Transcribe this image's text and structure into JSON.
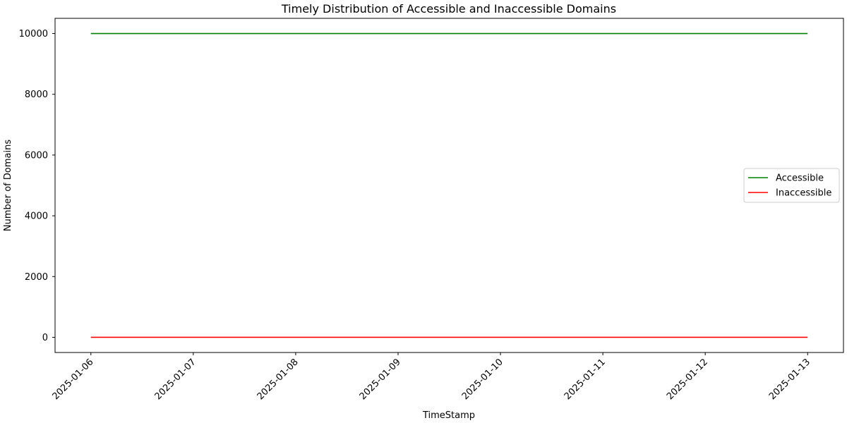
{
  "chart_data": {
    "type": "line",
    "title": "Timely Distribution of Accessible and Inaccessible Domains",
    "xlabel": "TimeStamp",
    "ylabel": "Number of Domains",
    "x": [
      "2025-01-06",
      "2025-01-07",
      "2025-01-08",
      "2025-01-09",
      "2025-01-10",
      "2025-01-11",
      "2025-01-12",
      "2025-01-13"
    ],
    "x_ticks": [
      "2025-01-06",
      "2025-01-07",
      "2025-01-08",
      "2025-01-09",
      "2025-01-10",
      "2025-01-11",
      "2025-01-12",
      "2025-01-13"
    ],
    "xlim": [
      "2025-01-06",
      "2025-01-13"
    ],
    "y_ticks": [
      0,
      2000,
      4000,
      6000,
      8000,
      10000
    ],
    "ylim": [
      -500,
      10500
    ],
    "grid": false,
    "legend_position": "center-right",
    "series": [
      {
        "name": "Accessible",
        "color": "#008000",
        "values": [
          10000,
          10000,
          10000,
          10000,
          10000,
          10000,
          10000,
          10000
        ]
      },
      {
        "name": "Inaccessible",
        "color": "#ff0000",
        "values": [
          0,
          0,
          0,
          0,
          0,
          0,
          0,
          0
        ]
      }
    ]
  }
}
